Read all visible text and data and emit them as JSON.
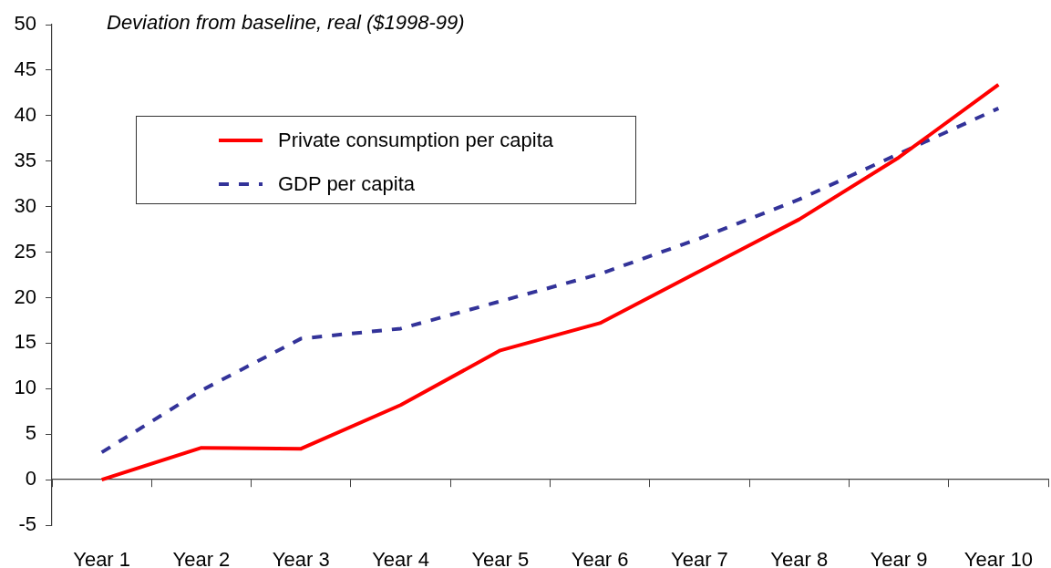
{
  "chart_data": {
    "type": "line",
    "ylabel": "Deviation from baseline, real ($1998-99)",
    "categories": [
      "Year 1",
      "Year 2",
      "Year 3",
      "Year 4",
      "Year 5",
      "Year 6",
      "Year 7",
      "Year 8",
      "Year 9",
      "Year 10"
    ],
    "series": [
      {
        "name": "Private consumption per capita",
        "color": "#ff0000",
        "line_style": "solid",
        "values": [
          0,
          3.5,
          3.4,
          8.2,
          14.2,
          17.2,
          22.9,
          28.6,
          35.4,
          43.4
        ]
      },
      {
        "name": "GDP per capita",
        "color": "#333399",
        "line_style": "dashed",
        "values": [
          3.0,
          9.8,
          15.5,
          16.6,
          19.6,
          22.6,
          26.5,
          30.8,
          35.8,
          40.8
        ]
      }
    ],
    "ylim": [
      -5,
      50
    ],
    "yticks": [
      -5,
      0,
      5,
      10,
      15,
      20,
      25,
      30,
      35,
      40,
      45,
      50
    ],
    "legend": "top left",
    "marker": "none"
  }
}
